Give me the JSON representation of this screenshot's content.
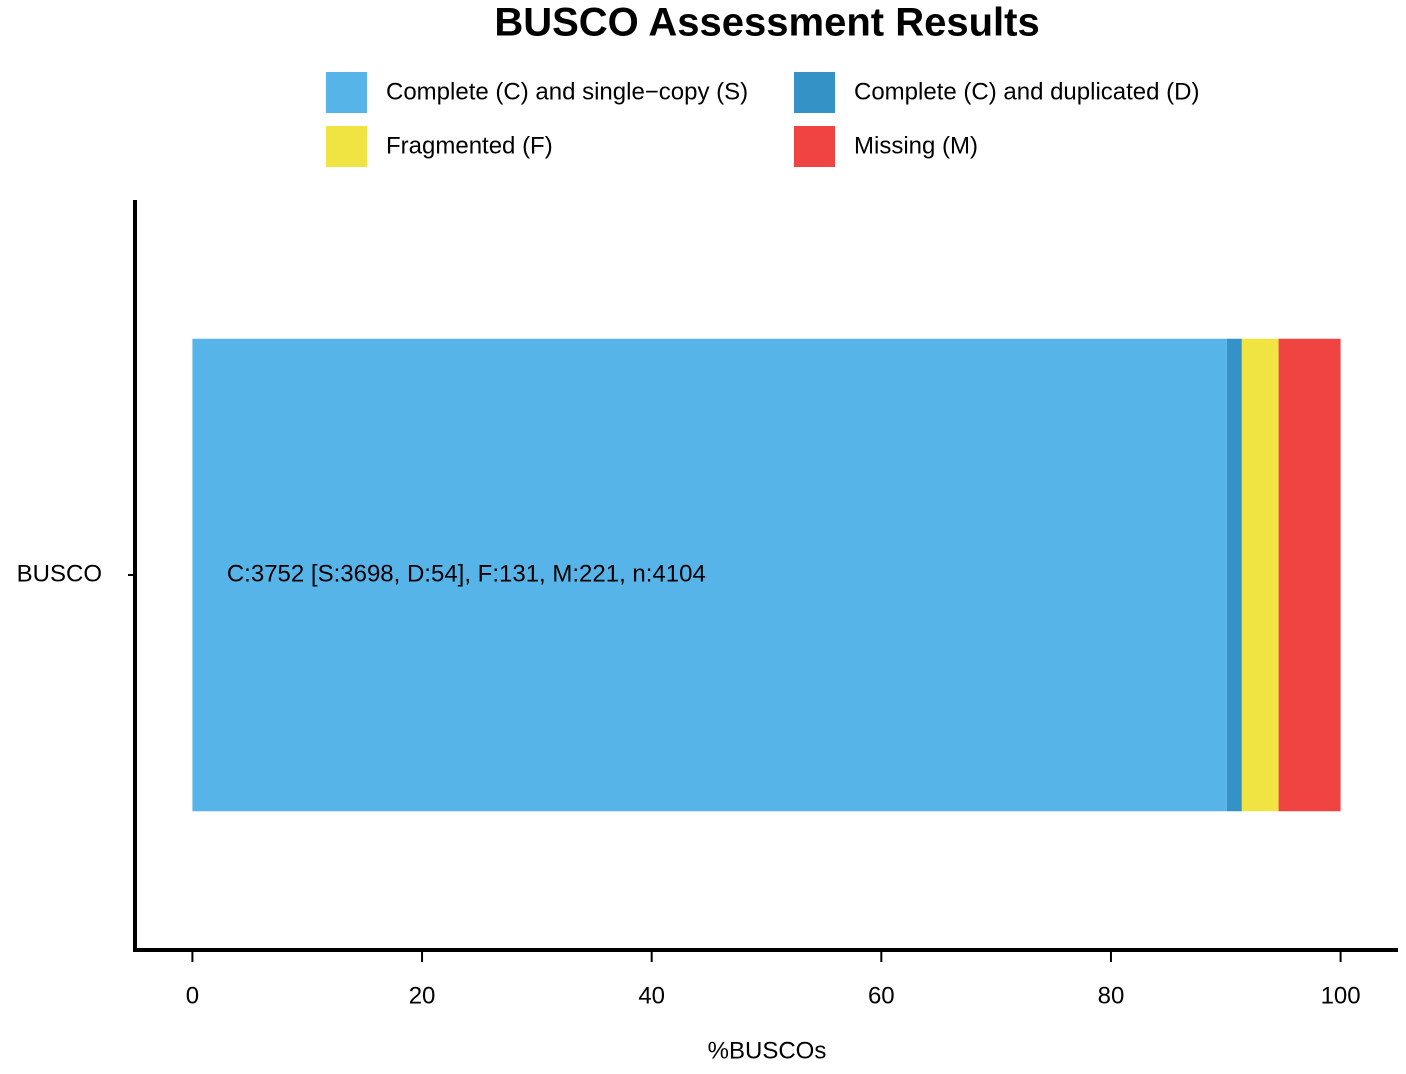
{
  "chart_data": {
    "type": "stacked-bar",
    "orientation": "horizontal",
    "title": "BUSCO Assessment Results",
    "x_label": "%BUSCOs",
    "categories": [
      "BUSCO"
    ],
    "series": [
      {
        "name": "Complete (C) and single−copy (S)",
        "color": "#56B4E9",
        "values": [
          90.1
        ]
      },
      {
        "name": "Complete (C) and duplicated (D)",
        "color": "#3492C7",
        "values": [
          1.3
        ]
      },
      {
        "name": "Fragmented (F)",
        "color": "#F0E442",
        "values": [
          3.2
        ]
      },
      {
        "name": "Missing (M)",
        "color": "#F04442",
        "values": [
          5.4
        ]
      }
    ],
    "annotation": "C:3752 [S:3698, D:54], F:131, M:221, n:4104",
    "xlim": [
      -5,
      105
    ],
    "xticks": [
      0,
      20,
      40,
      60,
      80,
      100
    ],
    "grid": false
  }
}
